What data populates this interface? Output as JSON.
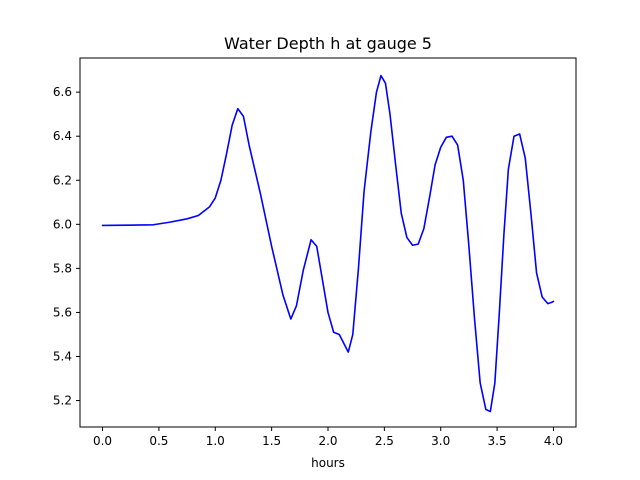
{
  "chart_data": {
    "type": "line",
    "title": "Water Depth h at gauge 5",
    "xlabel": "hours",
    "ylabel": "",
    "xlim": [
      -0.2,
      4.2
    ],
    "ylim": [
      5.08,
      6.755
    ],
    "xticks": [
      0.0,
      0.5,
      1.0,
      1.5,
      2.0,
      2.5,
      3.0,
      3.5,
      4.0
    ],
    "xtick_labels": [
      "0.0",
      "0.5",
      "1.0",
      "1.5",
      "2.0",
      "2.5",
      "3.0",
      "3.5",
      "4.0"
    ],
    "yticks": [
      5.2,
      5.4,
      5.6,
      5.8,
      6.0,
      6.2,
      6.4,
      6.6
    ],
    "ytick_labels": [
      "5.2",
      "5.4",
      "5.6",
      "5.8",
      "6.0",
      "6.2",
      "6.4",
      "6.6"
    ],
    "grid": false,
    "series": [
      {
        "color": "#0000ff",
        "x": [
          0.0,
          0.2,
          0.45,
          0.6,
          0.75,
          0.85,
          0.95,
          1.0,
          1.05,
          1.1,
          1.15,
          1.2,
          1.25,
          1.3,
          1.4,
          1.5,
          1.6,
          1.67,
          1.72,
          1.78,
          1.85,
          1.9,
          1.95,
          2.0,
          2.05,
          2.1,
          2.15,
          2.18,
          2.22,
          2.27,
          2.32,
          2.38,
          2.43,
          2.47,
          2.51,
          2.55,
          2.6,
          2.65,
          2.7,
          2.75,
          2.8,
          2.85,
          2.9,
          2.95,
          3.0,
          3.05,
          3.1,
          3.15,
          3.2,
          3.25,
          3.3,
          3.35,
          3.4,
          3.44,
          3.48,
          3.52,
          3.56,
          3.6,
          3.65,
          3.7,
          3.75,
          3.8,
          3.85,
          3.9,
          3.95,
          3.98,
          4.0
        ],
        "y": [
          5.995,
          5.996,
          5.998,
          6.01,
          6.025,
          6.04,
          6.08,
          6.12,
          6.2,
          6.32,
          6.45,
          6.525,
          6.49,
          6.36,
          6.14,
          5.9,
          5.68,
          5.57,
          5.63,
          5.79,
          5.93,
          5.9,
          5.75,
          5.6,
          5.51,
          5.5,
          5.45,
          5.42,
          5.5,
          5.8,
          6.15,
          6.42,
          6.6,
          6.675,
          6.64,
          6.5,
          6.27,
          6.05,
          5.94,
          5.905,
          5.91,
          5.98,
          6.12,
          6.27,
          6.35,
          6.395,
          6.4,
          6.36,
          6.2,
          5.9,
          5.57,
          5.28,
          5.16,
          5.15,
          5.28,
          5.6,
          5.95,
          6.25,
          6.4,
          6.41,
          6.3,
          6.05,
          5.78,
          5.67,
          5.64,
          5.645,
          5.65
        ]
      }
    ]
  }
}
